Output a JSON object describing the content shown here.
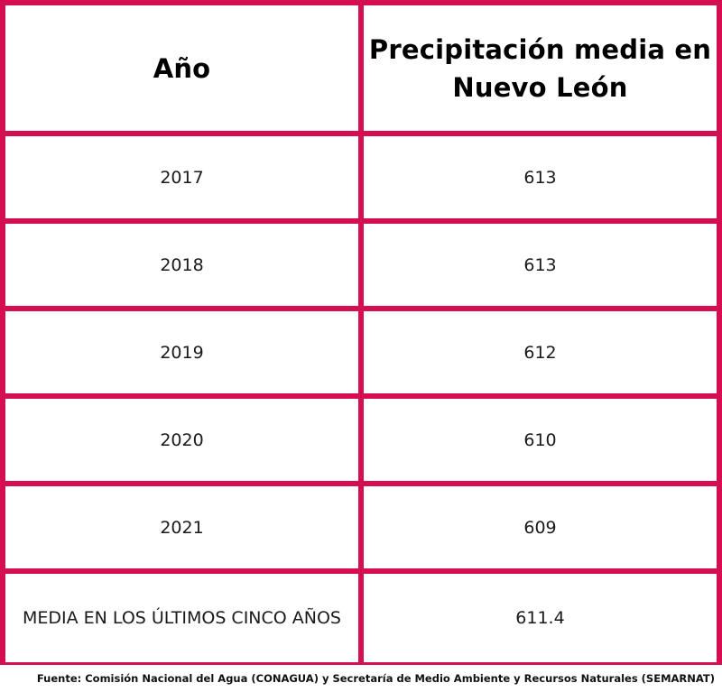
{
  "table": {
    "headers": [
      "Año",
      "Precipitación media en Nuevo León"
    ],
    "rows": [
      {
        "year": "2017",
        "value": "613"
      },
      {
        "year": "2018",
        "value": "613"
      },
      {
        "year": "2019",
        "value": "612"
      },
      {
        "year": "2020",
        "value": "610"
      },
      {
        "year": "2021",
        "value": "609"
      }
    ],
    "summary": {
      "label": "MEDIA EN LOS ÚLTIMOS CINCO AÑOS",
      "value": "611.4"
    }
  },
  "source": "Fuente: Comisión Nacional del Agua (CONAGUA) y Secretaría de Medio Ambiente y Recursos Naturales (SEMARNAT)",
  "colors": {
    "border": "#d40e50",
    "background": "#ffffff",
    "text": "#111111"
  }
}
